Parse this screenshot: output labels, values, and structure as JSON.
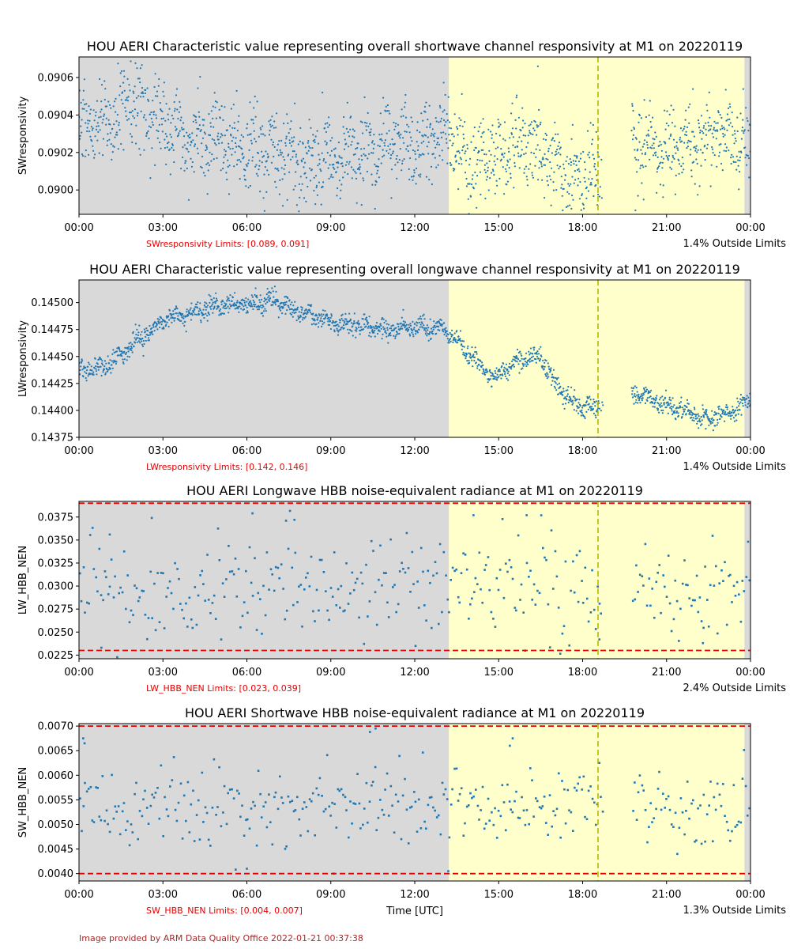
{
  "footer": "Image provided by ARM Data Quality Office 2022-01-21 00:37:38",
  "xaxis_label": "Time [UTC]",
  "colors": {
    "points": "#1f77b4",
    "night_shade": "#d9d9d9",
    "day_shade": "#ffffcc",
    "limit_line": "#e60000",
    "marker_line": "#b8b800"
  },
  "chart_data": [
    {
      "type": "scatter",
      "title": "HOU AERI Characteristic value representing overall shortwave channel responsivity at M1 on 20220119",
      "ylabel": "SWresponsivity",
      "xlim": [
        0,
        24
      ],
      "ylim": [
        0.08987,
        0.09071
      ],
      "yticks": [
        0.09,
        0.0902,
        0.0904,
        0.0906
      ],
      "ytick_labels": [
        "0.0900",
        "0.0902",
        "0.0904",
        "0.0906"
      ],
      "xtick_labels": [
        "00:00",
        "03:00",
        "06:00",
        "09:00",
        "12:00",
        "15:00",
        "18:00",
        "21:00",
        "00:00"
      ],
      "limits_text": "SWresponsivity Limits: [0.089, 0.091]",
      "outside_text": "1.4% Outside Limits",
      "limit_lines": [],
      "night_spans": [
        [
          0,
          13.22
        ],
        [
          23.78,
          24
        ]
      ],
      "day_span": [
        13.22,
        23.78
      ],
      "marker_time": 18.55,
      "gap": [
        18.75,
        19.75
      ],
      "series": [
        {
          "marker": "dot",
          "count": 1800,
          "trend": [
            [
              0,
              0.09031
            ],
            [
              1,
              0.09038
            ],
            [
              2,
              0.09046
            ],
            [
              3,
              0.09036
            ],
            [
              4,
              0.09025
            ],
            [
              5,
              0.09028
            ],
            [
              6,
              0.09021
            ],
            [
              7,
              0.0902
            ],
            [
              8,
              0.09017
            ],
            [
              9,
              0.09015
            ],
            [
              10,
              0.09021
            ],
            [
              11,
              0.09025
            ],
            [
              12,
              0.09027
            ],
            [
              13,
              0.0903
            ],
            [
              14,
              0.09015
            ],
            [
              15,
              0.09017
            ],
            [
              16,
              0.09027
            ],
            [
              17,
              0.0901
            ],
            [
              18,
              0.09005
            ],
            [
              18.7,
              0.0901
            ],
            [
              20,
              0.09025
            ],
            [
              21,
              0.09022
            ],
            [
              22,
              0.09024
            ],
            [
              23,
              0.09032
            ],
            [
              24,
              0.0902
            ]
          ],
          "noise": 0.00011,
          "spikes": [
            [
              2.2,
              0.09065
            ],
            [
              16.4,
              0.09066
            ],
            [
              10.1,
              0.08992
            ],
            [
              17.6,
              0.0899
            ],
            [
              8.7,
              0.09052
            ]
          ]
        }
      ]
    },
    {
      "type": "scatter",
      "title": "HOU AERI Characteristic value representing overall longwave channel responsivity at M1 on 20220119",
      "ylabel": "LWresponsivity",
      "xlim": [
        0,
        24
      ],
      "ylim": [
        0.14375,
        0.14521
      ],
      "yticks": [
        0.14375,
        0.144,
        0.14425,
        0.1445,
        0.14475,
        0.145
      ],
      "ytick_labels": [
        "0.14375",
        "0.14400",
        "0.14425",
        "0.14450",
        "0.14475",
        "0.14500"
      ],
      "xtick_labels": [
        "00:00",
        "03:00",
        "06:00",
        "09:00",
        "12:00",
        "15:00",
        "18:00",
        "21:00",
        "00:00"
      ],
      "limits_text": "LWresponsivity Limits: [0.142, 0.146]",
      "outside_text": "1.4% Outside Limits",
      "limit_lines": [],
      "night_spans": [
        [
          0,
          13.22
        ],
        [
          23.78,
          24
        ]
      ],
      "day_span": [
        13.22,
        23.78
      ],
      "marker_time": 18.55,
      "gap": [
        18.75,
        19.75
      ],
      "series": [
        {
          "marker": "dot",
          "count": 1800,
          "trend": [
            [
              0,
              0.14437
            ],
            [
              1,
              0.14442
            ],
            [
              1.5,
              0.14452
            ],
            [
              2,
              0.14463
            ],
            [
              2.5,
              0.14471
            ],
            [
              3,
              0.14485
            ],
            [
              4,
              0.1449
            ],
            [
              5,
              0.14497
            ],
            [
              6,
              0.14498
            ],
            [
              7,
              0.14502
            ],
            [
              8,
              0.1449
            ],
            [
              8.7,
              0.14485
            ],
            [
              9,
              0.14481
            ],
            [
              10,
              0.14479
            ],
            [
              11,
              0.14474
            ],
            [
              12,
              0.14478
            ],
            [
              13,
              0.14476
            ],
            [
              13.5,
              0.14465
            ],
            [
              14,
              0.1445
            ],
            [
              14.8,
              0.1443
            ],
            [
              15.3,
              0.14438
            ],
            [
              15.7,
              0.14447
            ],
            [
              16.5,
              0.14449
            ],
            [
              17,
              0.14425
            ],
            [
              17.5,
              0.14412
            ],
            [
              18,
              0.14403
            ],
            [
              18.6,
              0.14402
            ],
            [
              19.9,
              0.14417
            ],
            [
              20.5,
              0.14409
            ],
            [
              21.5,
              0.14402
            ],
            [
              22.3,
              0.14392
            ],
            [
              23,
              0.14397
            ],
            [
              23.5,
              0.144
            ],
            [
              24,
              0.14412
            ]
          ],
          "noise": 4.5e-05,
          "spikes": [
            [
              7,
              0.14515
            ],
            [
              6.8,
              0.1451
            ],
            [
              22.4,
              0.14383
            ]
          ]
        }
      ]
    },
    {
      "type": "scatter",
      "title": "HOU AERI Longwave HBB noise-equivalent radiance at M1 on 20220119",
      "ylabel": "LW_HBB_NEN",
      "xlim": [
        0,
        24
      ],
      "ylim": [
        0.0221,
        0.0392
      ],
      "yticks": [
        0.0225,
        0.025,
        0.0275,
        0.03,
        0.0325,
        0.035,
        0.0375
      ],
      "ytick_labels": [
        "0.0225",
        "0.0250",
        "0.0275",
        "0.0300",
        "0.0325",
        "0.0350",
        "0.0375"
      ],
      "xtick_labels": [
        "00:00",
        "03:00",
        "06:00",
        "09:00",
        "12:00",
        "15:00",
        "18:00",
        "21:00",
        "00:00"
      ],
      "limits_text": "LW_HBB_NEN Limits: [0.023, 0.039]",
      "outside_text": "2.4% Outside Limits",
      "limit_lines": [
        0.023,
        0.039
      ],
      "night_spans": [
        [
          0,
          13.22
        ],
        [
          23.78,
          24
        ]
      ],
      "day_span": [
        13.22,
        23.78
      ],
      "marker_time": 18.55,
      "gap": [
        18.75,
        19.75
      ],
      "series": [
        {
          "marker": "square",
          "count": 380,
          "trend": [
            [
              0,
              0.0298
            ],
            [
              24,
              0.0298
            ]
          ],
          "noise": 0.0028,
          "spikes": [
            [
              6.2,
              0.0379
            ],
            [
              2.6,
              0.0374
            ],
            [
              14.1,
              0.0377
            ],
            [
              16.0,
              0.0377
            ],
            [
              7.7,
              0.0372
            ],
            [
              7.4,
              0.0371
            ],
            [
              22.3,
              0.0238
            ],
            [
              18.6,
              0.0242
            ],
            [
              1.1,
              0.0356
            ],
            [
              0.8,
              0.0233
            ]
          ]
        }
      ]
    },
    {
      "type": "scatter",
      "title": "HOU AERI Shortwave HBB noise-equivalent radiance at M1 on 20220119",
      "ylabel": "SW_HBB_NEN",
      "xlim": [
        0,
        24
      ],
      "ylim": [
        0.00385,
        0.00705
      ],
      "yticks": [
        0.004,
        0.0045,
        0.005,
        0.0055,
        0.006,
        0.0065,
        0.007
      ],
      "ytick_labels": [
        "0.0040",
        "0.0045",
        "0.0050",
        "0.0055",
        "0.0060",
        "0.0065",
        "0.0070"
      ],
      "xtick_labels": [
        "00:00",
        "03:00",
        "06:00",
        "09:00",
        "12:00",
        "15:00",
        "18:00",
        "21:00",
        "00:00"
      ],
      "limits_text": "SW_HBB_NEN Limits: [0.004, 0.007]",
      "outside_text": "1.3% Outside Limits",
      "limit_lines": [
        0.004,
        0.007
      ],
      "night_spans": [
        [
          0,
          13.22
        ],
        [
          23.78,
          24
        ]
      ],
      "day_span": [
        13.22,
        23.78
      ],
      "marker_time": 18.55,
      "gap": [
        18.75,
        19.75
      ],
      "series": [
        {
          "marker": "square",
          "count": 380,
          "trend": [
            [
              0,
              0.00535
            ],
            [
              24,
              0.00535
            ]
          ],
          "noise": 0.00042,
          "spikes": [
            [
              10.6,
              0.00695
            ],
            [
              10.4,
              0.00688
            ],
            [
              0.15,
              0.00675
            ],
            [
              0.2,
              0.00665
            ],
            [
              15.5,
              0.00675
            ],
            [
              15.4,
              0.0066
            ],
            [
              6.0,
              0.0041
            ],
            [
              9.1,
              0.004
            ],
            [
              13.2,
              0.00405
            ],
            [
              18.6,
              0.00625
            ]
          ]
        }
      ]
    }
  ]
}
